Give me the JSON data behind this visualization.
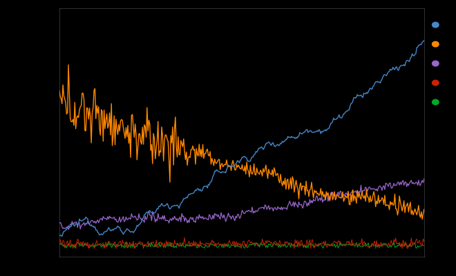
{
  "background_color": "#000000",
  "grid_color": "#ffffff",
  "grid_alpha": 0.25,
  "line_colors": [
    "#4488cc",
    "#ff8800",
    "#9966cc",
    "#cc2200",
    "#00aa22"
  ],
  "legend_colors": [
    "#4488cc",
    "#ff8800",
    "#9966cc",
    "#cc2200",
    "#00aa22"
  ],
  "n_points": 400,
  "figsize": [
    6.6,
    4.0
  ],
  "dpi": 100
}
